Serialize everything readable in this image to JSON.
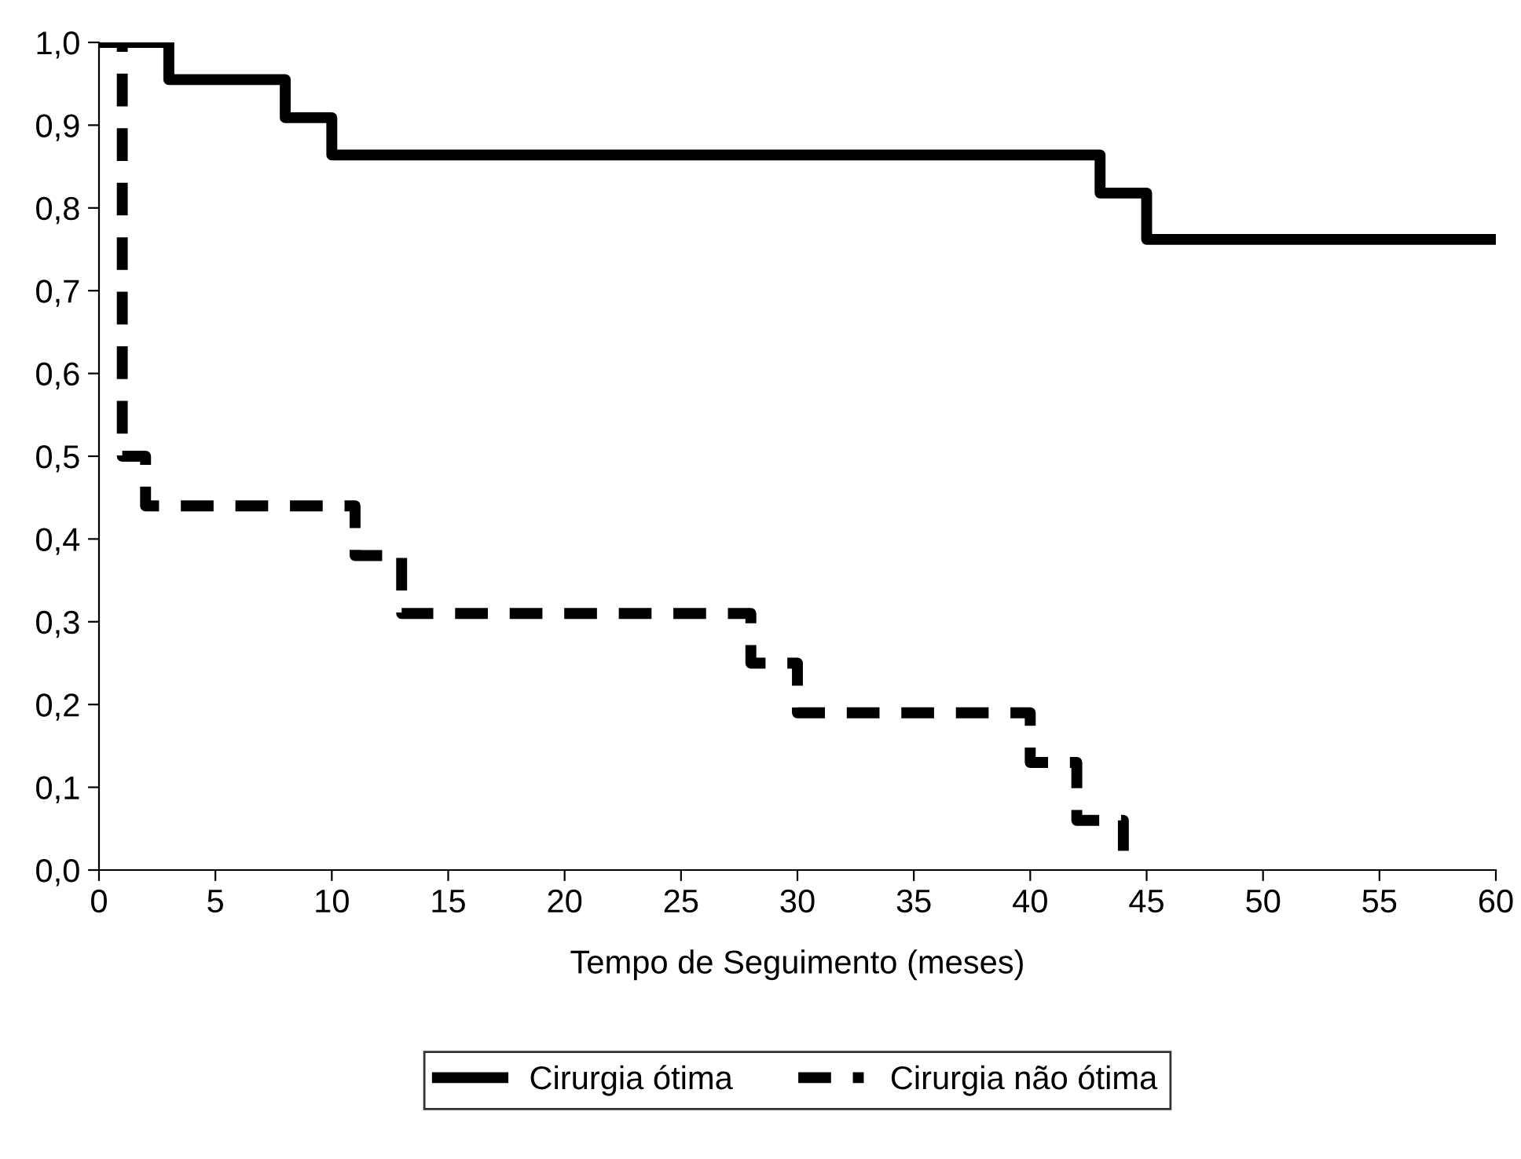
{
  "chart_data": {
    "type": "step",
    "xlabel": "Tempo de Seguimento (meses)",
    "xlim": [
      0,
      60
    ],
    "xticks": [
      0,
      5,
      10,
      15,
      20,
      25,
      30,
      35,
      40,
      45,
      50,
      55,
      60
    ],
    "ylim": [
      0,
      1
    ],
    "yticks": [
      {
        "value": 0,
        "label": "0,0"
      },
      {
        "value": 0.1,
        "label": "0,1"
      },
      {
        "value": 0.2,
        "label": "0,2"
      },
      {
        "value": 0.3,
        "label": "0,3"
      },
      {
        "value": 0.4,
        "label": "0,4"
      },
      {
        "value": 0.5,
        "label": "0,5"
      },
      {
        "value": 0.6,
        "label": "0,6"
      },
      {
        "value": 0.7,
        "label": "0,7"
      },
      {
        "value": 0.8,
        "label": "0,8"
      },
      {
        "value": 0.9,
        "label": "0,9"
      },
      {
        "value": 1,
        "label": "1,0"
      }
    ],
    "grid": false,
    "legend": "bottom",
    "series": [
      {
        "name": "Cirurgia ótima",
        "color": "#000000",
        "line_style": "solid",
        "x": [
          0,
          3,
          8,
          10,
          43,
          45,
          60
        ],
        "values": [
          1.0,
          0.955,
          0.909,
          0.864,
          0.818,
          0.762,
          0.762
        ]
      },
      {
        "name": "Cirurgia não ótima",
        "color": "#000000",
        "line_style": "dashed",
        "x": [
          0,
          1,
          2,
          11,
          13,
          28,
          30,
          40,
          42,
          44
        ],
        "values": [
          1.0,
          0.5,
          0.44,
          0.38,
          0.31,
          0.25,
          0.19,
          0.13,
          0.06,
          0.0
        ]
      }
    ]
  }
}
